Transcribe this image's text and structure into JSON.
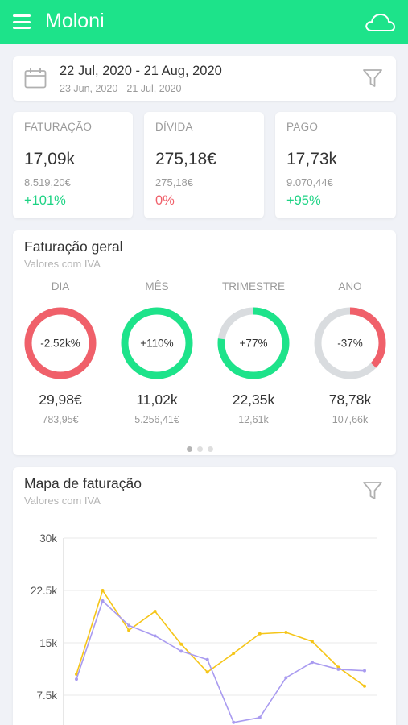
{
  "app": {
    "title": "Moloni"
  },
  "date_range": {
    "current": "22 Jul, 2020 - 21 Aug, 2020",
    "previous": "23 Jun, 2020 - 21 Jul, 2020"
  },
  "stats": [
    {
      "label": "FATURAÇÃO",
      "value": "17,09k",
      "previous": "8.519,20€",
      "delta": "+101%",
      "trend": "positive"
    },
    {
      "label": "DÍVIDA",
      "value": "275,18€",
      "previous": "275,18€",
      "delta": "0%",
      "trend": "negative"
    },
    {
      "label": "PAGO",
      "value": "17,73k",
      "previous": "9.070,44€",
      "delta": "+95%",
      "trend": "positive"
    }
  ],
  "faturacao_geral": {
    "title": "Faturação geral",
    "subtitle": "Valores com IVA",
    "gauges": [
      {
        "label": "DIA",
        "center": "-2.52k%",
        "value": "29,98€",
        "previous": "783,95€",
        "fill": 1.0,
        "color": "#f0606a"
      },
      {
        "label": "MÊS",
        "center": "+110%",
        "value": "11,02k",
        "previous": "5.256,41€",
        "fill": 1.0,
        "color": "#1de38a"
      },
      {
        "label": "TRIMESTRE",
        "center": "+77%",
        "value": "22,35k",
        "previous": "12,61k",
        "fill": 0.77,
        "color": "#1de38a"
      },
      {
        "label": "ANO",
        "center": "-37%",
        "value": "78,78k",
        "previous": "107,66k",
        "fill": 0.37,
        "color": "#f0606a"
      }
    ],
    "pages": 3,
    "active_page": 1
  },
  "mapa": {
    "title": "Mapa de faturação",
    "subtitle": "Valores com IVA"
  },
  "chart_data": {
    "type": "line",
    "ylim": [
      0,
      30000
    ],
    "yticks": [
      {
        "value": 7500,
        "label": "7.5k"
      },
      {
        "value": 15000,
        "label": "15k"
      },
      {
        "value": 22500,
        "label": "22.5k"
      },
      {
        "value": 30000,
        "label": "30k"
      }
    ],
    "grid": true,
    "series": [
      {
        "color": "#f5c518",
        "values": [
          10500,
          22500,
          16800,
          19500,
          14800,
          10800,
          13500,
          16300,
          16500,
          15200,
          11500,
          8800
        ]
      },
      {
        "color": "#a99bf0",
        "values": [
          9800,
          21000,
          17500,
          16000,
          13800,
          12600,
          3600,
          4300,
          10000,
          12200,
          11200,
          11000
        ]
      }
    ]
  },
  "colors": {
    "accent": "#1de38a",
    "positive": "#1dd384",
    "negative": "#f0606a",
    "gauge_track": "#d9dcdf"
  },
  "icons": {
    "menu": "menu-icon",
    "cloud": "cloud-icon",
    "calendar": "calendar-icon",
    "filter": "filter-icon"
  }
}
